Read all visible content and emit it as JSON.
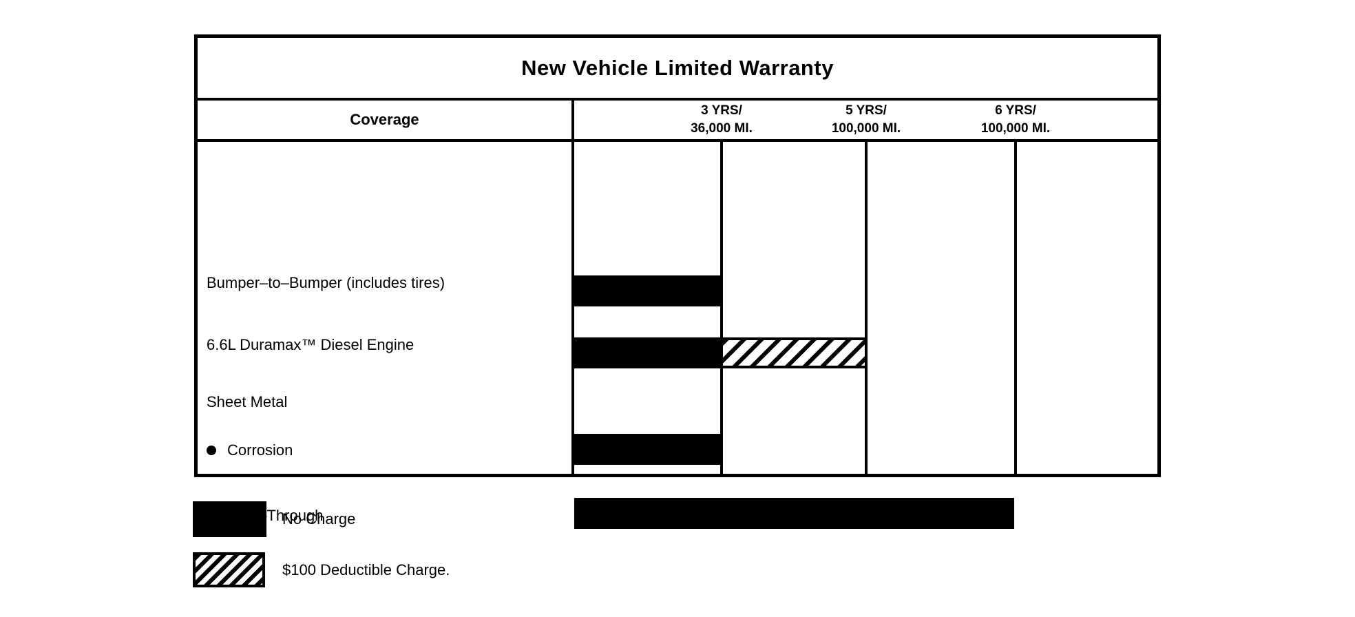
{
  "title": "New Vehicle Limited Warranty",
  "table": {
    "coverage_header": "Coverage",
    "column_headers": [
      {
        "line1": "3 YRS/",
        "line2": "36,000 MI."
      },
      {
        "line1": "5 YRS/",
        "line2": "100,000 MI."
      },
      {
        "line1": "6 YRS/",
        "line2": "100,000 MI."
      }
    ]
  },
  "icons": {
    "bullet": "filled-circle"
  },
  "colors": {
    "bar": "#000000",
    "border": "#000000",
    "background": "#ffffff"
  },
  "chart_data": {
    "type": "bar",
    "subtype": "horizontal-coverage-gantt",
    "title": "New Vehicle Limited Warranty",
    "xlabel": "",
    "ylabel": "Coverage",
    "x_axis": {
      "tick_labels": [
        "3 YRS/36,000 MI.",
        "5 YRS/100,000 MI.",
        "6 YRS/100,000 MI."
      ],
      "tick_years": [
        3,
        5,
        6
      ],
      "tick_miles": [
        36000,
        100000,
        100000
      ]
    },
    "rows": [
      {
        "label": "Bumper–to–Bumper (includes tires)",
        "bullet": false,
        "segments": [
          {
            "style": "no_charge",
            "from_col": 0,
            "to_col": 1,
            "coverage": "3 YRS/36,000 MI."
          }
        ]
      },
      {
        "label": "6.6L Duramax™ Diesel Engine",
        "bullet": false,
        "segments": [
          {
            "style": "no_charge",
            "from_col": 0,
            "to_col": 1,
            "coverage": "3 YRS/36,000 MI."
          },
          {
            "style": "deductible",
            "from_col": 1,
            "to_col": 2,
            "coverage": "3 YRS/36,000 MI. to 5 YRS/100,000 MI."
          }
        ]
      },
      {
        "label": "Sheet Metal",
        "bullet": false,
        "segments": []
      },
      {
        "label": "Corrosion",
        "bullet": true,
        "segments": [
          {
            "style": "no_charge",
            "from_col": 0,
            "to_col": 1,
            "coverage": "3 YRS/36,000 MI."
          }
        ]
      },
      {
        "label": "Rust–Through",
        "bullet": true,
        "segments": [
          {
            "style": "no_charge",
            "from_col": 0,
            "to_col": 3,
            "coverage": "6 YRS/100,000 MI."
          }
        ]
      }
    ],
    "legend": [
      {
        "style": "no_charge",
        "label": "No Charge"
      },
      {
        "style": "deductible",
        "label": "$100 Deductible Charge."
      }
    ],
    "legend_position": "below-chart"
  }
}
